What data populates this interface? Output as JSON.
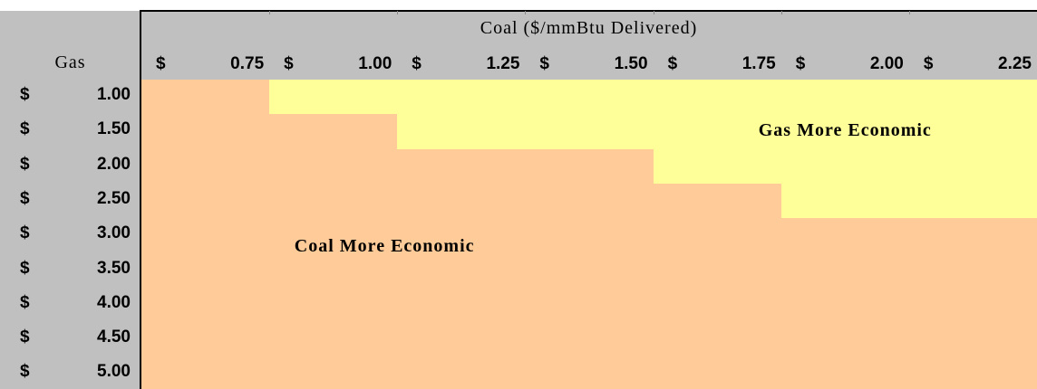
{
  "table": {
    "corner": "Gas",
    "column_title": "Coal ($/mmBtu Delivered)",
    "columns": [
      {
        "symbol": "$",
        "value": "0.75"
      },
      {
        "symbol": "$",
        "value": "1.00"
      },
      {
        "symbol": "$",
        "value": "1.25"
      },
      {
        "symbol": "$",
        "value": "1.50"
      },
      {
        "symbol": "$",
        "value": "1.75"
      },
      {
        "symbol": "$",
        "value": "2.00"
      },
      {
        "symbol": "$",
        "value": "2.25"
      }
    ],
    "rows": [
      {
        "symbol": "$",
        "value": "1.00"
      },
      {
        "symbol": "$",
        "value": "1.50"
      },
      {
        "symbol": "$",
        "value": "2.00"
      },
      {
        "symbol": "$",
        "value": "2.50"
      },
      {
        "symbol": "$",
        "value": "3.00"
      },
      {
        "symbol": "$",
        "value": "3.50"
      },
      {
        "symbol": "$",
        "value": "4.00"
      },
      {
        "symbol": "$",
        "value": "4.50"
      },
      {
        "symbol": "$",
        "value": "5.00"
      }
    ],
    "cell_colors": [
      [
        "#ffcc99",
        "#ffff99",
        "#ffff99",
        "#ffff99",
        "#ffff99",
        "#ffff99",
        "#ffff99"
      ],
      [
        "#ffcc99",
        "#ffcc99",
        "#ffff99",
        "#ffff99",
        "#ffff99",
        "#ffff99",
        "#ffff99"
      ],
      [
        "#ffcc99",
        "#ffcc99",
        "#ffcc99",
        "#ffcc99",
        "#ffff99",
        "#ffff99",
        "#ffff99"
      ],
      [
        "#ffcc99",
        "#ffcc99",
        "#ffcc99",
        "#ffcc99",
        "#ffcc99",
        "#ffff99",
        "#ffff99"
      ],
      [
        "#ffcc99",
        "#ffcc99",
        "#ffcc99",
        "#ffcc99",
        "#ffcc99",
        "#ffcc99",
        "#ffcc99"
      ],
      [
        "#ffcc99",
        "#ffcc99",
        "#ffcc99",
        "#ffcc99",
        "#ffcc99",
        "#ffcc99",
        "#ffcc99"
      ],
      [
        "#ffcc99",
        "#ffcc99",
        "#ffcc99",
        "#ffcc99",
        "#ffcc99",
        "#ffcc99",
        "#ffcc99"
      ],
      [
        "#ffcc99",
        "#ffcc99",
        "#ffcc99",
        "#ffcc99",
        "#ffcc99",
        "#ffcc99",
        "#ffcc99"
      ],
      [
        "#ffcc99",
        "#ffcc99",
        "#ffcc99",
        "#ffcc99",
        "#ffcc99",
        "#ffcc99",
        "#ffcc99"
      ]
    ],
    "gas_label": "Gas More Economic",
    "coal_label": "Coal More Economic"
  }
}
